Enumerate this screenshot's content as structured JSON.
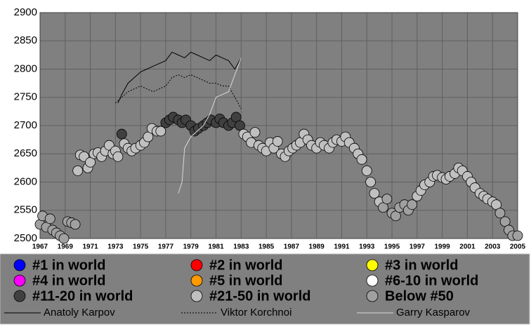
{
  "chart_data": {
    "type": "scatter",
    "xlim": [
      1967,
      2005
    ],
    "ylim": [
      2500,
      2900
    ],
    "xticks": [
      1967,
      1969,
      1971,
      1973,
      1975,
      1977,
      1979,
      1981,
      1983,
      1985,
      1987,
      1989,
      1991,
      1993,
      1995,
      1997,
      1999,
      2001,
      2003,
      2005
    ],
    "yticks": [
      2500,
      2550,
      2600,
      2650,
      2700,
      2750,
      2800,
      2850,
      2900
    ],
    "grid": true,
    "series": [
      {
        "name": "#1 in world",
        "color": "#0000ff",
        "mark": "circle",
        "x": [],
        "values": []
      },
      {
        "name": "#2 in world",
        "color": "#ff0000",
        "mark": "circle",
        "x": [],
        "values": []
      },
      {
        "name": "#3 in world",
        "color": "#ffff00",
        "mark": "circle",
        "x": [],
        "values": []
      },
      {
        "name": "#4 in world",
        "color": "#ff00ff",
        "mark": "circle",
        "x": [],
        "values": []
      },
      {
        "name": "#5 in world",
        "color": "#ff9900",
        "mark": "circle",
        "x": [],
        "values": []
      },
      {
        "name": "#6-10 in world",
        "color": "#ffffff",
        "mark": "circle",
        "x": [],
        "values": []
      },
      {
        "name": "#11-20 in world",
        "color": "#404040",
        "mark": "circle",
        "x": [
          1973.5,
          1977.0,
          1977.3,
          1977.6,
          1978.0,
          1978.3,
          1978.6,
          1979.0,
          1979.3,
          1979.6,
          1980.0,
          1980.3,
          1980.6,
          1981.0,
          1981.3,
          1981.6,
          1982.0,
          1982.3,
          1982.6,
          1982.9
        ],
        "values": [
          2685,
          2705,
          2710,
          2715,
          2710,
          2705,
          2710,
          2700,
          2690,
          2695,
          2700,
          2705,
          2710,
          2705,
          2712,
          2705,
          2700,
          2705,
          2715,
          2700
        ]
      },
      {
        "name": "#21-50 in world",
        "color": "#c0c0c0",
        "mark": "circle",
        "x": [
          1970.0,
          1970.2,
          1970.5,
          1970.8,
          1971.0,
          1971.3,
          1971.6,
          1971.9,
          1972.2,
          1972.5,
          1972.8,
          1973.0,
          1973.2,
          1973.7,
          1974.0,
          1974.3,
          1974.6,
          1975.0,
          1975.3,
          1975.6,
          1975.9,
          1976.3,
          1976.6,
          1983.2,
          1983.5,
          1983.8,
          1984.1,
          1984.4,
          1984.7,
          1985.0,
          1985.3,
          1985.6,
          1985.9,
          1986.2,
          1986.5,
          1986.8,
          1987.1,
          1987.4,
          1987.7,
          1988.0,
          1988.3,
          1988.6,
          1989.0,
          1989.3,
          1989.6,
          1990.0,
          1990.3,
          1990.6,
          1991.0,
          1991.3,
          1991.6,
          1992.0,
          1992.3,
          1992.6,
          1993.0,
          1993.3,
          1993.6,
          1994.0,
          1997.0,
          1997.3,
          1997.6,
          1998.0,
          1998.3,
          1998.6,
          1999.0,
          1999.3,
          1999.6,
          2000.0,
          2000.3,
          2000.6,
          2001.0,
          2001.3,
          2001.6,
          2002.0,
          2002.3,
          2002.6,
          2003.0,
          2003.3
        ],
        "values": [
          2620,
          2648,
          2645,
          2625,
          2635,
          2650,
          2652,
          2645,
          2655,
          2665,
          2650,
          2655,
          2645,
          2668,
          2660,
          2655,
          2660,
          2665,
          2670,
          2680,
          2695,
          2690,
          2690,
          2685,
          2680,
          2670,
          2688,
          2665,
          2660,
          2655,
          2670,
          2660,
          2672,
          2650,
          2645,
          2655,
          2660,
          2665,
          2670,
          2685,
          2675,
          2665,
          2660,
          2670,
          2665,
          2660,
          2670,
          2675,
          2672,
          2680,
          2670,
          2660,
          2650,
          2640,
          2620,
          2600,
          2580,
          2565,
          2575,
          2585,
          2595,
          2600,
          2610,
          2612,
          2608,
          2605,
          2610,
          2615,
          2625,
          2620,
          2610,
          2600,
          2590,
          2580,
          2575,
          2570,
          2565,
          2560
        ]
      },
      {
        "name": "Below #50",
        "color": "#a0a0a0",
        "mark": "circle",
        "x": [
          1967.0,
          1967.2,
          1967.5,
          1967.8,
          1968.0,
          1968.3,
          1968.6,
          1968.9,
          1969.2,
          1969.5,
          1969.8,
          1994.3,
          1994.6,
          1995.0,
          1995.3,
          1995.6,
          1996.0,
          1996.3,
          1996.6,
          2003.6,
          2004.0,
          2004.3,
          2004.6,
          2005.0
        ],
        "values": [
          2525,
          2540,
          2520,
          2535,
          2515,
          2510,
          2505,
          2500,
          2530,
          2528,
          2525,
          2555,
          2570,
          2545,
          2540,
          2555,
          2560,
          2550,
          2560,
          2545,
          2530,
          2515,
          2505,
          2505
        ]
      },
      {
        "name": "Anatoly Karpov",
        "color": "#000000",
        "mark": "line",
        "dash": "none",
        "x": [
          1973.2,
          1973.5,
          1974.0,
          1974.5,
          1975.0,
          1975.5,
          1976.0,
          1976.5,
          1977.0,
          1977.5,
          1978.0,
          1978.5,
          1979.0,
          1979.5,
          1980.0,
          1980.5,
          1981.0,
          1981.5,
          1982.0,
          1982.5,
          1983.0
        ],
        "values": [
          2740,
          2755,
          2775,
          2785,
          2795,
          2800,
          2805,
          2810,
          2815,
          2830,
          2825,
          2820,
          2830,
          2825,
          2820,
          2815,
          2825,
          2820,
          2815,
          2800,
          2820
        ]
      },
      {
        "name": "Viktor Korchnoi",
        "color": "#000000",
        "mark": "line",
        "dash": "2,2",
        "x": [
          1973.0,
          1973.5,
          1974.0,
          1974.5,
          1975.0,
          1975.5,
          1976.0,
          1976.5,
          1977.0,
          1977.5,
          1978.0,
          1978.5,
          1979.0,
          1979.5,
          1980.0,
          1980.5,
          1981.0,
          1981.5,
          1982.0,
          1982.5,
          1983.0
        ],
        "values": [
          2740,
          2750,
          2760,
          2765,
          2770,
          2765,
          2760,
          2765,
          2770,
          2785,
          2790,
          2785,
          2790,
          2785,
          2780,
          2775,
          2775,
          2770,
          2770,
          2750,
          2730
        ]
      },
      {
        "name": "Garry Kasparov",
        "color": "#d8d8d8",
        "mark": "line",
        "dash": "none",
        "x": [
          1978.0,
          1978.3,
          1978.5,
          1979.0,
          1979.5,
          1980.0,
          1980.5,
          1981.0,
          1981.5,
          1982.0,
          1982.5,
          1983.0
        ],
        "values": [
          2580,
          2600,
          2660,
          2680,
          2690,
          2700,
          2720,
          2750,
          2755,
          2760,
          2790,
          2820
        ]
      }
    ]
  }
}
